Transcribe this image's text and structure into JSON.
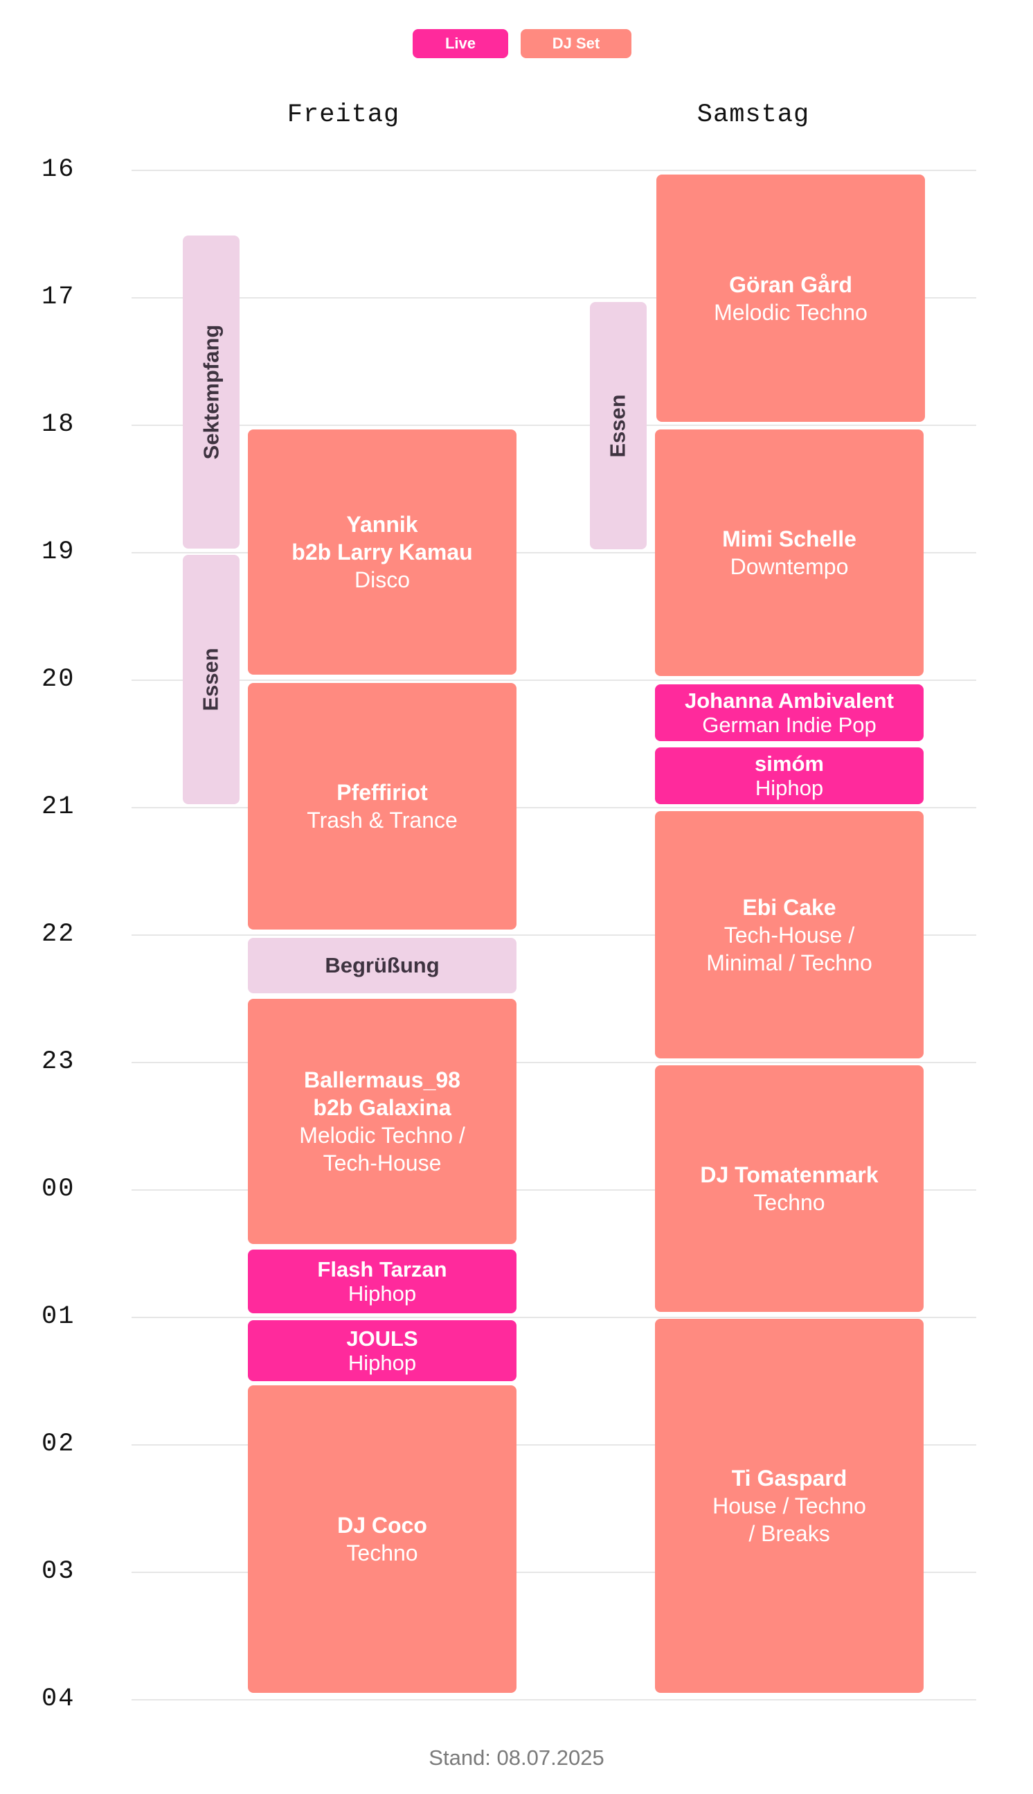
{
  "legend": {
    "live": {
      "label": "Live",
      "color": "#ff2a9c"
    },
    "dj_set": {
      "label": "DJ Set",
      "color": "#ff8a80"
    }
  },
  "days": [
    "Freitag",
    "Samstag"
  ],
  "hours": [
    "16",
    "17",
    "18",
    "19",
    "20",
    "21",
    "22",
    "23",
    "00",
    "01",
    "02",
    "03",
    "04"
  ],
  "event_color": "#efd2e6",
  "friday": {
    "events": [
      {
        "label": "Sektempfang"
      },
      {
        "label": "Essen"
      },
      {
        "label": "Begrüßung"
      }
    ],
    "acts": [
      {
        "artist": "Yannik\nb2b Larry Kamau",
        "genre": "Disco",
        "kind": "DJ Set"
      },
      {
        "artist": "Pfeffiriot",
        "genre": "Trash & Trance",
        "kind": "DJ Set"
      },
      {
        "artist": "Ballermaus_98\nb2b Galaxina",
        "genre": "Melodic Techno /\nTech-House",
        "kind": "DJ Set"
      },
      {
        "artist": "Flash Tarzan",
        "genre": "Hiphop",
        "kind": "Live"
      },
      {
        "artist": "JOULS",
        "genre": "Hiphop",
        "kind": "Live"
      },
      {
        "artist": "DJ Coco",
        "genre": "Techno",
        "kind": "DJ Set"
      }
    ]
  },
  "saturday": {
    "events": [
      {
        "label": "Essen"
      }
    ],
    "acts": [
      {
        "artist": "Göran Gård",
        "genre": "Melodic Techno",
        "kind": "DJ Set"
      },
      {
        "artist": "Mimi Schelle",
        "genre": "Downtempo",
        "kind": "DJ Set"
      },
      {
        "artist": "Johanna Ambivalent",
        "genre": "German Indie Pop",
        "kind": "Live"
      },
      {
        "artist": "simóm",
        "genre": "Hiphop",
        "kind": "Live"
      },
      {
        "artist": "Ebi Cake",
        "genre": "Tech-House /\nMinimal / Techno",
        "kind": "DJ Set"
      },
      {
        "artist": "DJ Tomatenmark",
        "genre": "Techno",
        "kind": "DJ Set"
      },
      {
        "artist": "Ti Gaspard",
        "genre": "House / Techno\n/ Breaks",
        "kind": "DJ Set"
      }
    ]
  },
  "footer": {
    "text": "Stand: 08.07.2025"
  }
}
